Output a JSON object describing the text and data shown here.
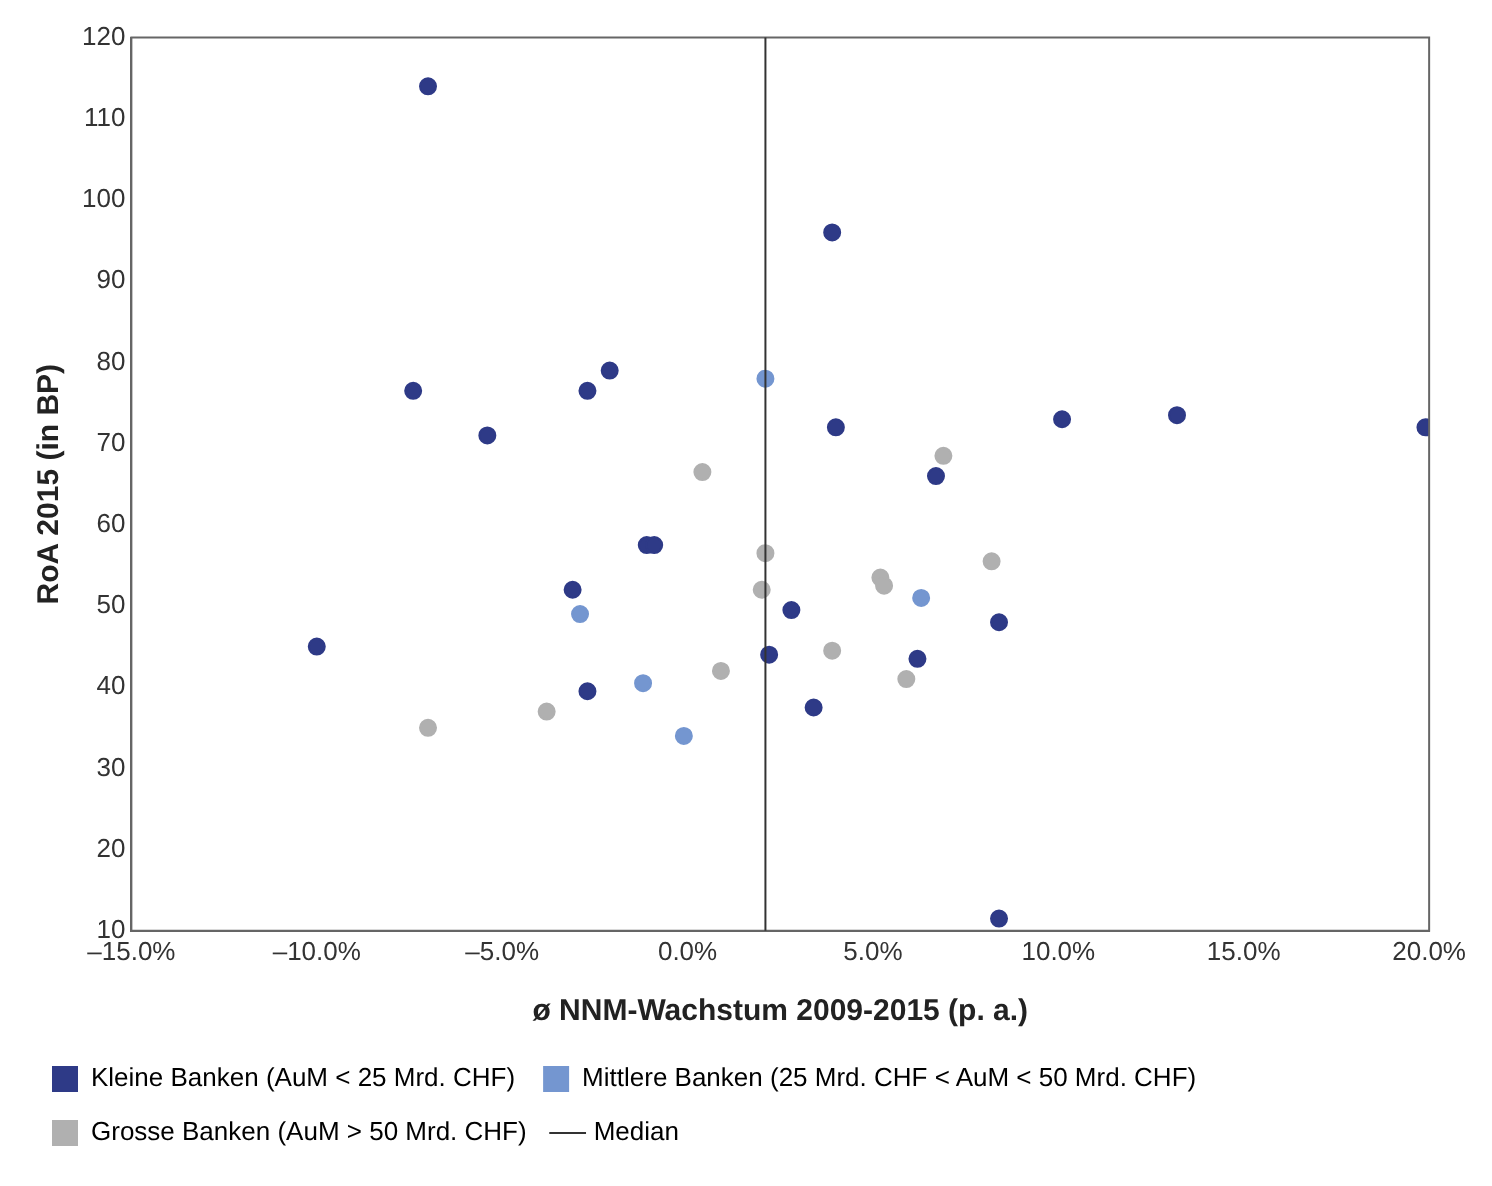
{
  "chart_data": {
    "type": "scatter",
    "xlabel": "ø NNM-Wachstum 2009-2015 (p. a.)",
    "ylabel": "RoA 2015 (in BP)",
    "xlim": [
      -15,
      20
    ],
    "xticks": [
      {
        "value": -15,
        "label": "–15.0%"
      },
      {
        "value": -10,
        "label": "–10.0%"
      },
      {
        "value": -5,
        "label": "–5.0%"
      },
      {
        "value": 0,
        "label": "0.0%"
      },
      {
        "value": 5,
        "label": "5.0%"
      },
      {
        "value": 10,
        "label": "10.0%"
      },
      {
        "value": 15,
        "label": "15.0%"
      },
      {
        "value": 20,
        "label": "20.0%"
      }
    ],
    "ylim": [
      10,
      120
    ],
    "yticks": [
      10,
      20,
      30,
      40,
      50,
      60,
      70,
      80,
      90,
      100,
      110,
      120
    ],
    "grid": false,
    "legend": "bottom",
    "marker": "circle",
    "series": [
      {
        "name": "Kleine Banken (AuM < 25 Mrd. CHF)",
        "color": "#2e3a87",
        "x": [
          -7,
          3.9,
          -7.4,
          -2.1,
          -2.7,
          -5.4,
          4,
          10.1,
          13.2,
          19.9,
          6.7,
          -1.1,
          -0.9,
          -3.1,
          2.8,
          -10,
          8.4,
          2.2,
          6.2,
          -2.7,
          3.4,
          8.4
        ],
        "values": [
          114,
          96,
          76.5,
          79,
          76.5,
          71,
          72,
          73,
          73.5,
          72,
          66,
          57.5,
          57.5,
          52,
          49.5,
          45,
          48,
          44,
          43.5,
          39.5,
          37.5,
          11.5
        ]
      },
      {
        "name": "Mittlere Banken (25 Mrd. CHF < AuM < 50 Mrd. CHF)",
        "color": "#7496d0",
        "x": [
          2.1,
          -2.9,
          6.3,
          -1.2,
          -0.1
        ],
        "values": [
          78,
          49,
          51,
          40.5,
          34
        ]
      },
      {
        "name": "Grosse Banken (AuM > 50 Mrd. CHF)",
        "color": "#b0b0b0",
        "x": [
          0.4,
          6.9,
          2.1,
          2,
          5.2,
          5.3,
          8.2,
          3.9,
          0.9,
          5.9,
          -3.8,
          -7
        ],
        "values": [
          66.5,
          68.5,
          56.5,
          52,
          53.5,
          52.5,
          55.5,
          44.5,
          42,
          41,
          37,
          35
        ]
      }
    ],
    "ref_lines": [
      {
        "axis": "x",
        "value": 2.1,
        "label": "Median",
        "color": "#333333",
        "line_style": "solid"
      }
    ]
  }
}
